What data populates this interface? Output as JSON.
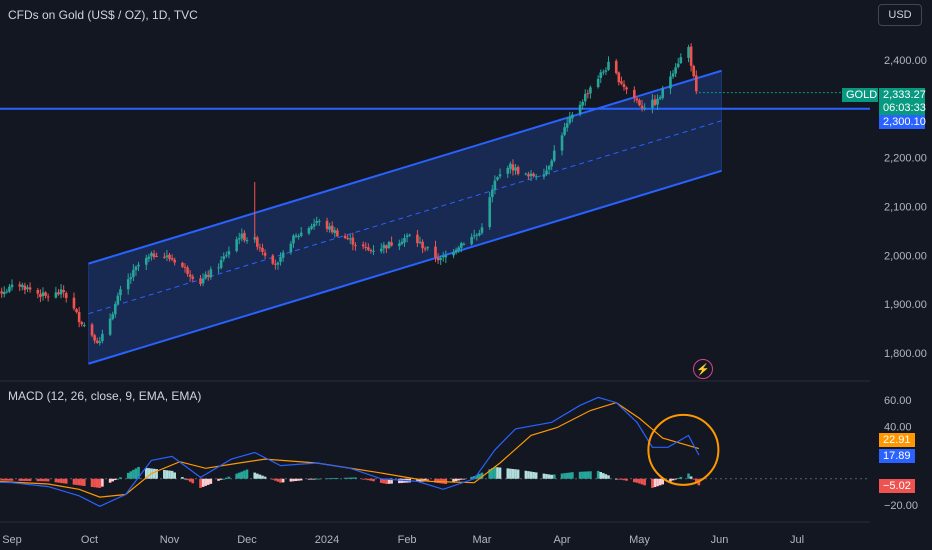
{
  "header": {
    "symbol_title": "CFDs on Gold (US$ / OZ), 1D, TVC",
    "currency_button": "USD"
  },
  "indicator": {
    "title": "MACD (12, 26, close, 9, EMA, EMA)"
  },
  "badges": {
    "symbol": "GOLD",
    "last_price": "2,333.27",
    "countdown": "06:03:33",
    "line_price": "2,300.10",
    "macd_signal": "22.91",
    "macd_line": "17.89",
    "macd_hist": "−5.02"
  },
  "colors": {
    "background": "#131722",
    "up_candle": "#26a69a",
    "down_candle": "#ef5350",
    "channel_line": "#2962ff",
    "channel_fill": "#1e3a7a",
    "macd_line": "#2962ff",
    "signal_line": "#ff9800",
    "highlight_circle": "#ff9800",
    "hist_pos_strong": "#26a69a",
    "hist_pos_weak": "#b2dfdb",
    "hist_neg_strong": "#ef5350",
    "hist_neg_weak": "#ffcdd2"
  },
  "icons": {
    "alert": "lightning-circle-icon"
  },
  "chart_data": [
    {
      "type": "candlestick",
      "title": "CFDs on Gold (US$ / OZ), 1D, TVC",
      "ylim": [
        1760,
        2470
      ],
      "y_ticks": [
        1800,
        1900,
        2000,
        2100,
        2200,
        2300,
        2400
      ],
      "y_tick_labels": [
        "1,800.00",
        "1,900.00",
        "2,000.00",
        "2,100.00",
        "2,200.00",
        "",
        "2,400.00"
      ],
      "x_tick_labels": [
        "Sep",
        "Oct",
        "Nov",
        "Dec",
        "2024",
        "Feb",
        "Mar",
        "Apr",
        "May",
        "Jun",
        "Jul"
      ],
      "horizontal_line": 2300.1,
      "last_price": 2333.27,
      "channel": {
        "start_date": "2023-10-01",
        "end_date": "2024-06-01",
        "upper_start": 1983,
        "upper_end": 2378,
        "lower_start": 1778,
        "lower_end": 2173,
        "median_dashed": true
      },
      "close_keypoints": [
        [
          "2023-08-17",
          1940
        ],
        [
          "2023-08-25",
          1920
        ],
        [
          "2023-09-04",
          1940
        ],
        [
          "2023-09-14",
          1915
        ],
        [
          "2023-09-21",
          1925
        ],
        [
          "2023-09-27",
          1870
        ],
        [
          "2023-10-05",
          1820
        ],
        [
          "2023-10-13",
          1925
        ],
        [
          "2023-10-20",
          1980
        ],
        [
          "2023-10-27",
          2005
        ],
        [
          "2023-11-03",
          1990
        ],
        [
          "2023-11-13",
          1945
        ],
        [
          "2023-11-20",
          1980
        ],
        [
          "2023-11-28",
          2040
        ],
        [
          "2023-12-04",
          2030
        ],
        [
          "2023-12-08",
          2005
        ],
        [
          "2023-12-13",
          1980
        ],
        [
          "2023-12-18",
          2030
        ],
        [
          "2023-12-28",
          2070
        ],
        [
          "2024-01-05",
          2045
        ],
        [
          "2024-01-17",
          2010
        ],
        [
          "2024-01-24",
          2020
        ],
        [
          "2024-02-02",
          2040
        ],
        [
          "2024-02-14",
          1990
        ],
        [
          "2024-02-22",
          2025
        ],
        [
          "2024-02-29",
          2045
        ],
        [
          "2024-03-06",
          2150
        ],
        [
          "2024-03-11",
          2185
        ],
        [
          "2024-03-19",
          2160
        ],
        [
          "2024-03-26",
          2175
        ],
        [
          "2024-04-01",
          2250
        ],
        [
          "2024-04-12",
          2345
        ],
        [
          "2024-04-19",
          2390
        ],
        [
          "2024-04-26",
          2340
        ],
        [
          "2024-05-02",
          2305
        ],
        [
          "2024-05-08",
          2315
        ],
        [
          "2024-05-15",
          2390
        ],
        [
          "2024-05-20",
          2425
        ],
        [
          "2024-05-23",
          2330
        ]
      ]
    },
    {
      "type": "line",
      "title": "MACD (12, 26, close, 9, EMA, EMA)",
      "ylim": [
        -28,
        68
      ],
      "y_ticks": [
        -20,
        0,
        20,
        40,
        60
      ],
      "y_tick_labels": [
        "−20.00",
        "",
        "",
        "40.00",
        "60.00"
      ],
      "series": [
        {
          "name": "MACD",
          "values": [
            [
              "2023-08-17",
              -2
            ],
            [
              "2023-09-01",
              -3
            ],
            [
              "2023-09-15",
              -6
            ],
            [
              "2023-09-27",
              -13
            ],
            [
              "2023-10-05",
              -21
            ],
            [
              "2023-10-15",
              -12
            ],
            [
              "2023-10-25",
              14
            ],
            [
              "2023-11-02",
              17
            ],
            [
              "2023-11-13",
              1
            ],
            [
              "2023-11-25",
              15
            ],
            [
              "2023-12-04",
              20
            ],
            [
              "2023-12-14",
              10
            ],
            [
              "2023-12-28",
              12
            ],
            [
              "2024-01-10",
              8
            ],
            [
              "2024-01-22",
              0
            ],
            [
              "2024-02-05",
              -2
            ],
            [
              "2024-02-15",
              -8
            ],
            [
              "2024-02-27",
              0
            ],
            [
              "2024-03-06",
              22
            ],
            [
              "2024-03-14",
              38
            ],
            [
              "2024-03-28",
              43
            ],
            [
              "2024-04-08",
              56
            ],
            [
              "2024-04-15",
              62
            ],
            [
              "2024-04-22",
              58
            ],
            [
              "2024-04-30",
              43
            ],
            [
              "2024-05-06",
              24
            ],
            [
              "2024-05-12",
              24
            ],
            [
              "2024-05-20",
              33
            ],
            [
              "2024-05-24",
              18
            ]
          ]
        },
        {
          "name": "Signal",
          "values": [
            [
              "2023-08-17",
              -1
            ],
            [
              "2023-09-15",
              -4
            ],
            [
              "2023-09-27",
              -8
            ],
            [
              "2023-10-05",
              -14
            ],
            [
              "2023-10-15",
              -12
            ],
            [
              "2023-10-25",
              4
            ],
            [
              "2023-11-05",
              13
            ],
            [
              "2023-11-15",
              8
            ],
            [
              "2023-11-28",
              12
            ],
            [
              "2023-12-08",
              15
            ],
            [
              "2023-12-28",
              12
            ],
            [
              "2024-01-20",
              5
            ],
            [
              "2024-02-10",
              -2
            ],
            [
              "2024-02-27",
              -3
            ],
            [
              "2024-03-08",
              12
            ],
            [
              "2024-03-20",
              33
            ],
            [
              "2024-03-30",
              39
            ],
            [
              "2024-04-12",
              52
            ],
            [
              "2024-04-22",
              58
            ],
            [
              "2024-05-01",
              46
            ],
            [
              "2024-05-10",
              31
            ],
            [
              "2024-05-17",
              27
            ],
            [
              "2024-05-24",
              23
            ]
          ]
        },
        {
          "name": "Histogram",
          "values": [
            [
              "2023-08-17",
              -1
            ],
            [
              "2023-09-15",
              -2
            ],
            [
              "2023-09-27",
              -5
            ],
            [
              "2023-10-05",
              -7
            ],
            [
              "2023-10-12",
              0
            ],
            [
              "2023-10-20",
              9
            ],
            [
              "2023-11-02",
              6
            ],
            [
              "2023-11-13",
              -7
            ],
            [
              "2023-11-22",
              0
            ],
            [
              "2023-12-01",
              7
            ],
            [
              "2023-12-14",
              -3
            ],
            [
              "2023-12-28",
              0
            ],
            [
              "2024-01-12",
              1
            ],
            [
              "2024-01-24",
              -4
            ],
            [
              "2024-02-08",
              -2
            ],
            [
              "2024-02-16",
              -4
            ],
            [
              "2024-02-27",
              2
            ],
            [
              "2024-03-06",
              9
            ],
            [
              "2024-03-15",
              7
            ],
            [
              "2024-03-28",
              3
            ],
            [
              "2024-04-05",
              5
            ],
            [
              "2024-04-15",
              6
            ],
            [
              "2024-04-22",
              0
            ],
            [
              "2024-04-30",
              -3
            ],
            [
              "2024-05-06",
              -7
            ],
            [
              "2024-05-12",
              -3
            ],
            [
              "2024-05-20",
              4
            ],
            [
              "2024-05-24",
              -5
            ]
          ]
        }
      ],
      "highlight_circle_date": "2024-05-18",
      "highlight_circle_value": 22
    }
  ]
}
